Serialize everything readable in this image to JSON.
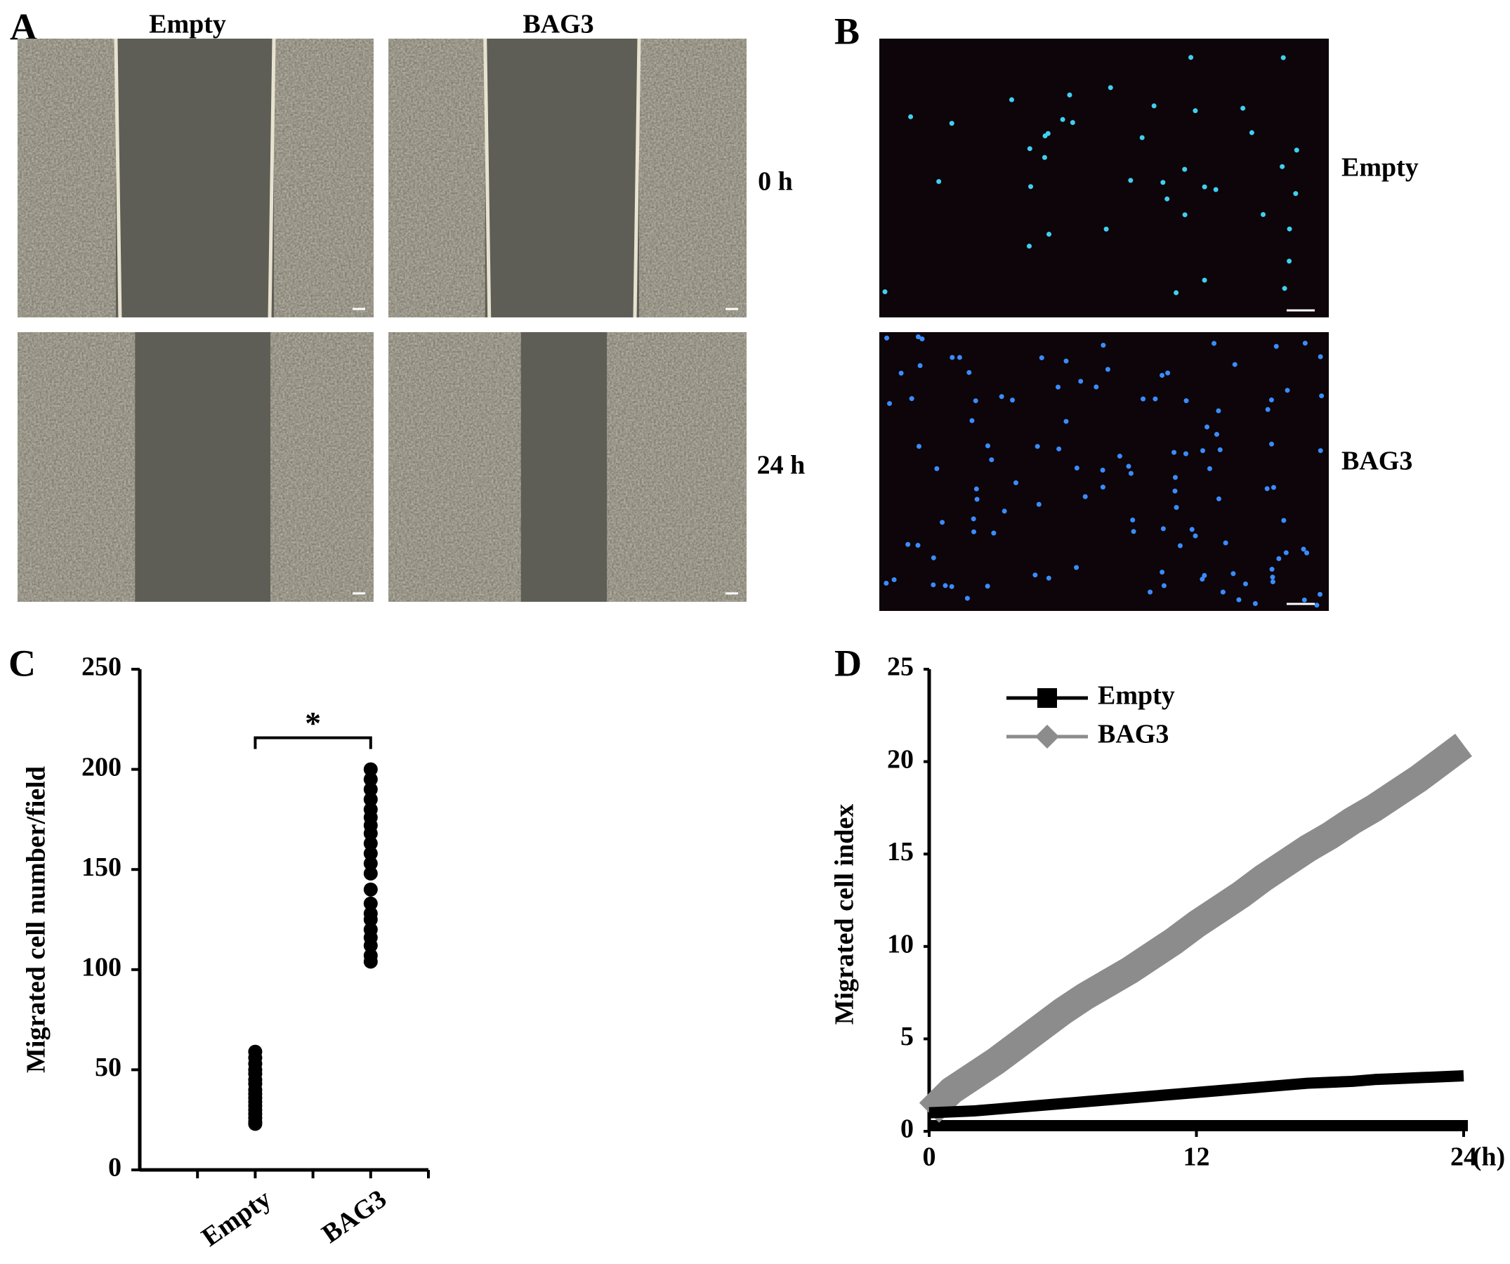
{
  "panel_a": {
    "label": "A",
    "columns": [
      "Empty",
      "BAG3"
    ],
    "rows": [
      "0 h",
      "24 h"
    ]
  },
  "panel_b": {
    "label": "B",
    "rows": [
      "Empty",
      "BAG3"
    ]
  },
  "chart_data": [
    {
      "type": "strip",
      "panel_label": "C",
      "y_label": "Migrated cell number/field",
      "categories": [
        null,
        "Empty",
        null,
        "BAG3",
        null
      ],
      "values": [
        null,
        [
          59,
          56,
          53,
          50,
          48,
          45,
          43,
          40,
          38,
          36,
          34,
          32,
          30,
          28,
          26,
          24,
          23
        ],
        null,
        [
          200,
          195,
          190,
          185,
          180,
          176,
          172,
          168,
          163,
          158,
          153,
          148,
          140,
          133,
          128,
          125,
          120,
          116,
          112,
          107,
          104
        ],
        null
      ],
      "color": "#000000",
      "annotation": "*",
      "ylim": [
        0,
        250
      ],
      "yticks": [
        0,
        50,
        100,
        150,
        200,
        250
      ]
    },
    {
      "type": "line",
      "panel_label": "D",
      "y_label": "Migrated cell index",
      "x_label": "(h)",
      "x": [
        0,
        1,
        2,
        3,
        4,
        5,
        6,
        7,
        8,
        9,
        10,
        11,
        12,
        13,
        14,
        15,
        16,
        17,
        18,
        19,
        20,
        21,
        22,
        23,
        24
      ],
      "series": [
        {
          "name": "Empty",
          "color": "#000000",
          "marker": "square",
          "values": [
            1,
            1.05,
            1.1,
            1.2,
            1.3,
            1.4,
            1.5,
            1.6,
            1.7,
            1.8,
            1.9,
            2.0,
            2.1,
            2.2,
            2.3,
            2.4,
            2.5,
            2.6,
            2.65,
            2.7,
            2.8,
            2.85,
            2.9,
            2.95,
            3.0
          ]
        },
        {
          "name": "BAG3",
          "color": "#8c8c8c",
          "marker": "diamond",
          "values": [
            1,
            2.2,
            3.0,
            3.8,
            4.7,
            5.6,
            6.5,
            7.3,
            8.0,
            8.7,
            9.5,
            10.3,
            11.2,
            12.0,
            12.8,
            13.7,
            14.5,
            15.3,
            16.0,
            16.8,
            17.5,
            18.3,
            19.1,
            20.0,
            20.9
          ]
        }
      ],
      "xlim": [
        0,
        24
      ],
      "xticks": [
        0,
        12,
        24
      ],
      "ylim": [
        0,
        25
      ],
      "yticks": [
        0,
        5,
        10,
        15,
        20,
        25
      ],
      "legend": "upper left"
    }
  ]
}
